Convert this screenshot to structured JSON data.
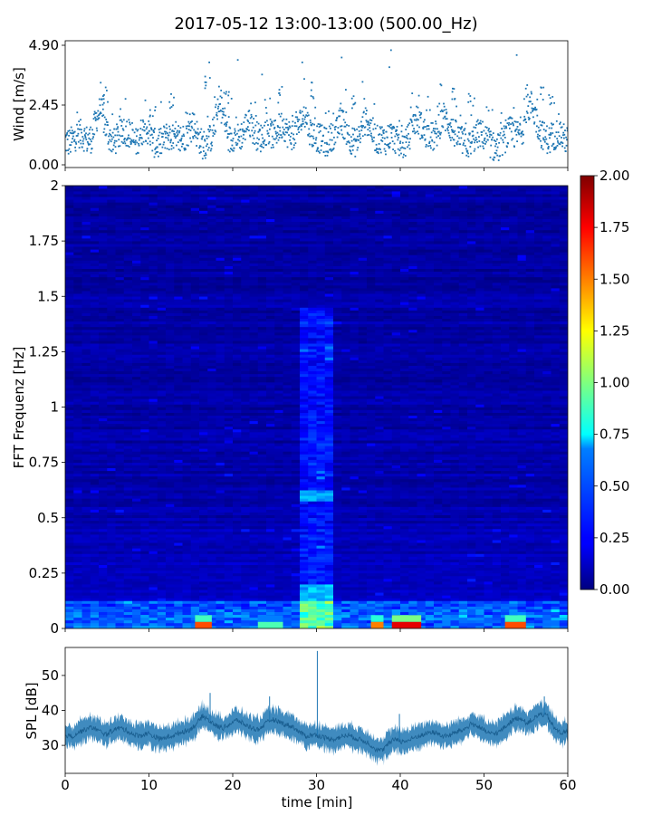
{
  "title": "2017-05-12 13:00-13:00 (500.00_Hz)",
  "chart_data": [
    {
      "type": "scatter",
      "name": "wind",
      "ylabel": "Wind [m/s]",
      "xlim": [
        0,
        60
      ],
      "ylim": [
        0,
        4.9
      ],
      "yticks": [
        "0.00",
        "2.45",
        "4.90"
      ],
      "ytick_values": [
        0,
        2.45,
        4.9
      ],
      "color": "#1f77b4",
      "baseline": [
        1.0,
        0.9,
        1.1,
        1.3,
        1.2,
        1.0,
        1.1,
        1.9,
        2.3,
        1.6,
        1.1,
        0.9,
        1.2,
        1.3,
        1.4,
        1.0,
        0.9,
        1.3,
        1.6,
        1.2,
        0.9,
        0.8,
        1.0,
        1.2,
        1.1,
        0.9,
        1.0,
        1.2,
        1.4,
        1.6,
        1.1,
        0.8,
        0.9,
        1.2,
        2.0,
        2.4,
        1.7,
        1.0,
        1.2,
        1.1,
        1.3,
        1.8,
        1.5,
        1.2,
        1.1,
        1.4,
        1.3,
        1.2,
        1.5,
        1.7,
        1.3,
        1.2,
        1.4,
        1.8,
        2.1,
        1.4,
        1.2,
        1.1,
        1.0,
        0.9,
        1.2,
        1.3,
        1.9,
        1.5,
        1.1,
        0.9,
        1.0,
        1.7,
        1.8,
        1.4,
        1.0,
        1.1,
        1.0,
        1.2,
        1.1,
        0.9,
        0.8,
        1.0,
        1.5,
        1.9,
        1.6,
        1.3,
        1.2,
        1.1,
        1.5,
        2.0,
        1.8,
        1.4,
        1.2,
        1.0,
        0.9,
        0.8,
        1.1,
        1.3,
        1.2,
        1.0,
        0.8,
        0.6,
        0.9,
        1.1,
        1.4,
        1.2,
        1.3,
        1.5,
        2.3,
        2.5,
        1.8,
        1.3,
        1.1,
        1.0,
        1.2,
        1.4,
        1.1,
        1.0
      ],
      "spikes": [
        [
          17.2,
          4.2
        ],
        [
          20.6,
          4.3
        ],
        [
          23.5,
          3.7
        ],
        [
          28.3,
          4.2
        ],
        [
          33.0,
          4.4
        ],
        [
          35.5,
          3.4
        ],
        [
          38.7,
          4.0
        ],
        [
          38.9,
          4.7
        ],
        [
          44.8,
          3.3
        ],
        [
          53.9,
          4.5
        ]
      ],
      "top_peaks": [
        [
          4.8,
          3.2
        ],
        [
          10.4,
          2.6
        ],
        [
          12.8,
          3.0
        ],
        [
          17.0,
          3.8
        ],
        [
          19.5,
          3.1
        ],
        [
          25.8,
          3.2
        ],
        [
          29.5,
          3.4
        ],
        [
          34.5,
          3.0
        ],
        [
          46.3,
          3.3
        ],
        [
          48.5,
          3.0
        ],
        [
          56.7,
          3.3
        ],
        [
          58.1,
          3.1
        ]
      ]
    },
    {
      "type": "heatmap",
      "name": "spectrogram",
      "ylabel": "FFT Frequenz [Hz]",
      "xlim": [
        0,
        60
      ],
      "ylim": [
        0,
        2
      ],
      "yticks": [
        "0",
        "0.25",
        "0.5",
        "0.75",
        "1",
        "1.25",
        "1.5",
        "1.75",
        "2"
      ],
      "ytick_values": [
        0,
        0.25,
        0.5,
        0.75,
        1,
        1.25,
        1.5,
        1.75,
        2
      ],
      "colormap": "jet",
      "vmin": 0,
      "vmax": 2,
      "highlight_band": {
        "x": [
          28.2,
          32.4
        ],
        "note": "elevated energy up to 1.45 Hz"
      },
      "low_freq_hotspots": [
        [
          15.5,
          17.5,
          1.6
        ],
        [
          23.0,
          26.0,
          0.9
        ],
        [
          36.5,
          38.0,
          1.5
        ],
        [
          39.0,
          42.5,
          1.8
        ],
        [
          52.5,
          55.0,
          1.6
        ]
      ],
      "colorbar_ticks": [
        "0.00",
        "0.25",
        "0.50",
        "0.75",
        "1.00",
        "1.25",
        "1.50",
        "1.75",
        "2.00"
      ]
    },
    {
      "type": "line",
      "name": "spl",
      "ylabel": "SPL [dB]",
      "xlabel": "time [min]",
      "xlim": [
        0,
        60
      ],
      "ylim": [
        22,
        58
      ],
      "xticks": [
        "0",
        "10",
        "20",
        "30",
        "40",
        "50",
        "60"
      ],
      "xtick_values": [
        0,
        10,
        20,
        30,
        40,
        50,
        60
      ],
      "yticks": [
        "30",
        "40",
        "50"
      ],
      "ytick_values": [
        30,
        40,
        50
      ],
      "color": "#1f77b4",
      "baseline": [
        33.0,
        32.5,
        33.8,
        34.6,
        35.2,
        34.0,
        33.1,
        34.5,
        35.0,
        34.2,
        33.0,
        32.8,
        33.5,
        32.4,
        31.8,
        32.5,
        33.0,
        33.9,
        34.4,
        36.0,
        38.5,
        37.0,
        35.5,
        35.0,
        36.2,
        37.3,
        36.0,
        35.1,
        34.5,
        36.0,
        37.5,
        36.8,
        36.0,
        35.4,
        33.8,
        32.6,
        33.1,
        32.7,
        32.0,
        31.8,
        32.4,
        33.0,
        32.2,
        31.5,
        30.8,
        29.0,
        28.5,
        30.5,
        32.0,
        31.0,
        31.5,
        32.5,
        33.0,
        33.8,
        33.5,
        32.5,
        33.0,
        34.0,
        34.6,
        36.2,
        35.4,
        34.0,
        33.2,
        33.8,
        35.5,
        37.2,
        38.0,
        36.4,
        37.5,
        39.0,
        38.5,
        35.0,
        33.5,
        34.0
      ],
      "spikes": [
        [
          17.3,
          45.0
        ],
        [
          24.4,
          44.0
        ],
        [
          30.1,
          57.0
        ],
        [
          39.9,
          39.0
        ],
        [
          57.2,
          44.0
        ]
      ]
    }
  ]
}
